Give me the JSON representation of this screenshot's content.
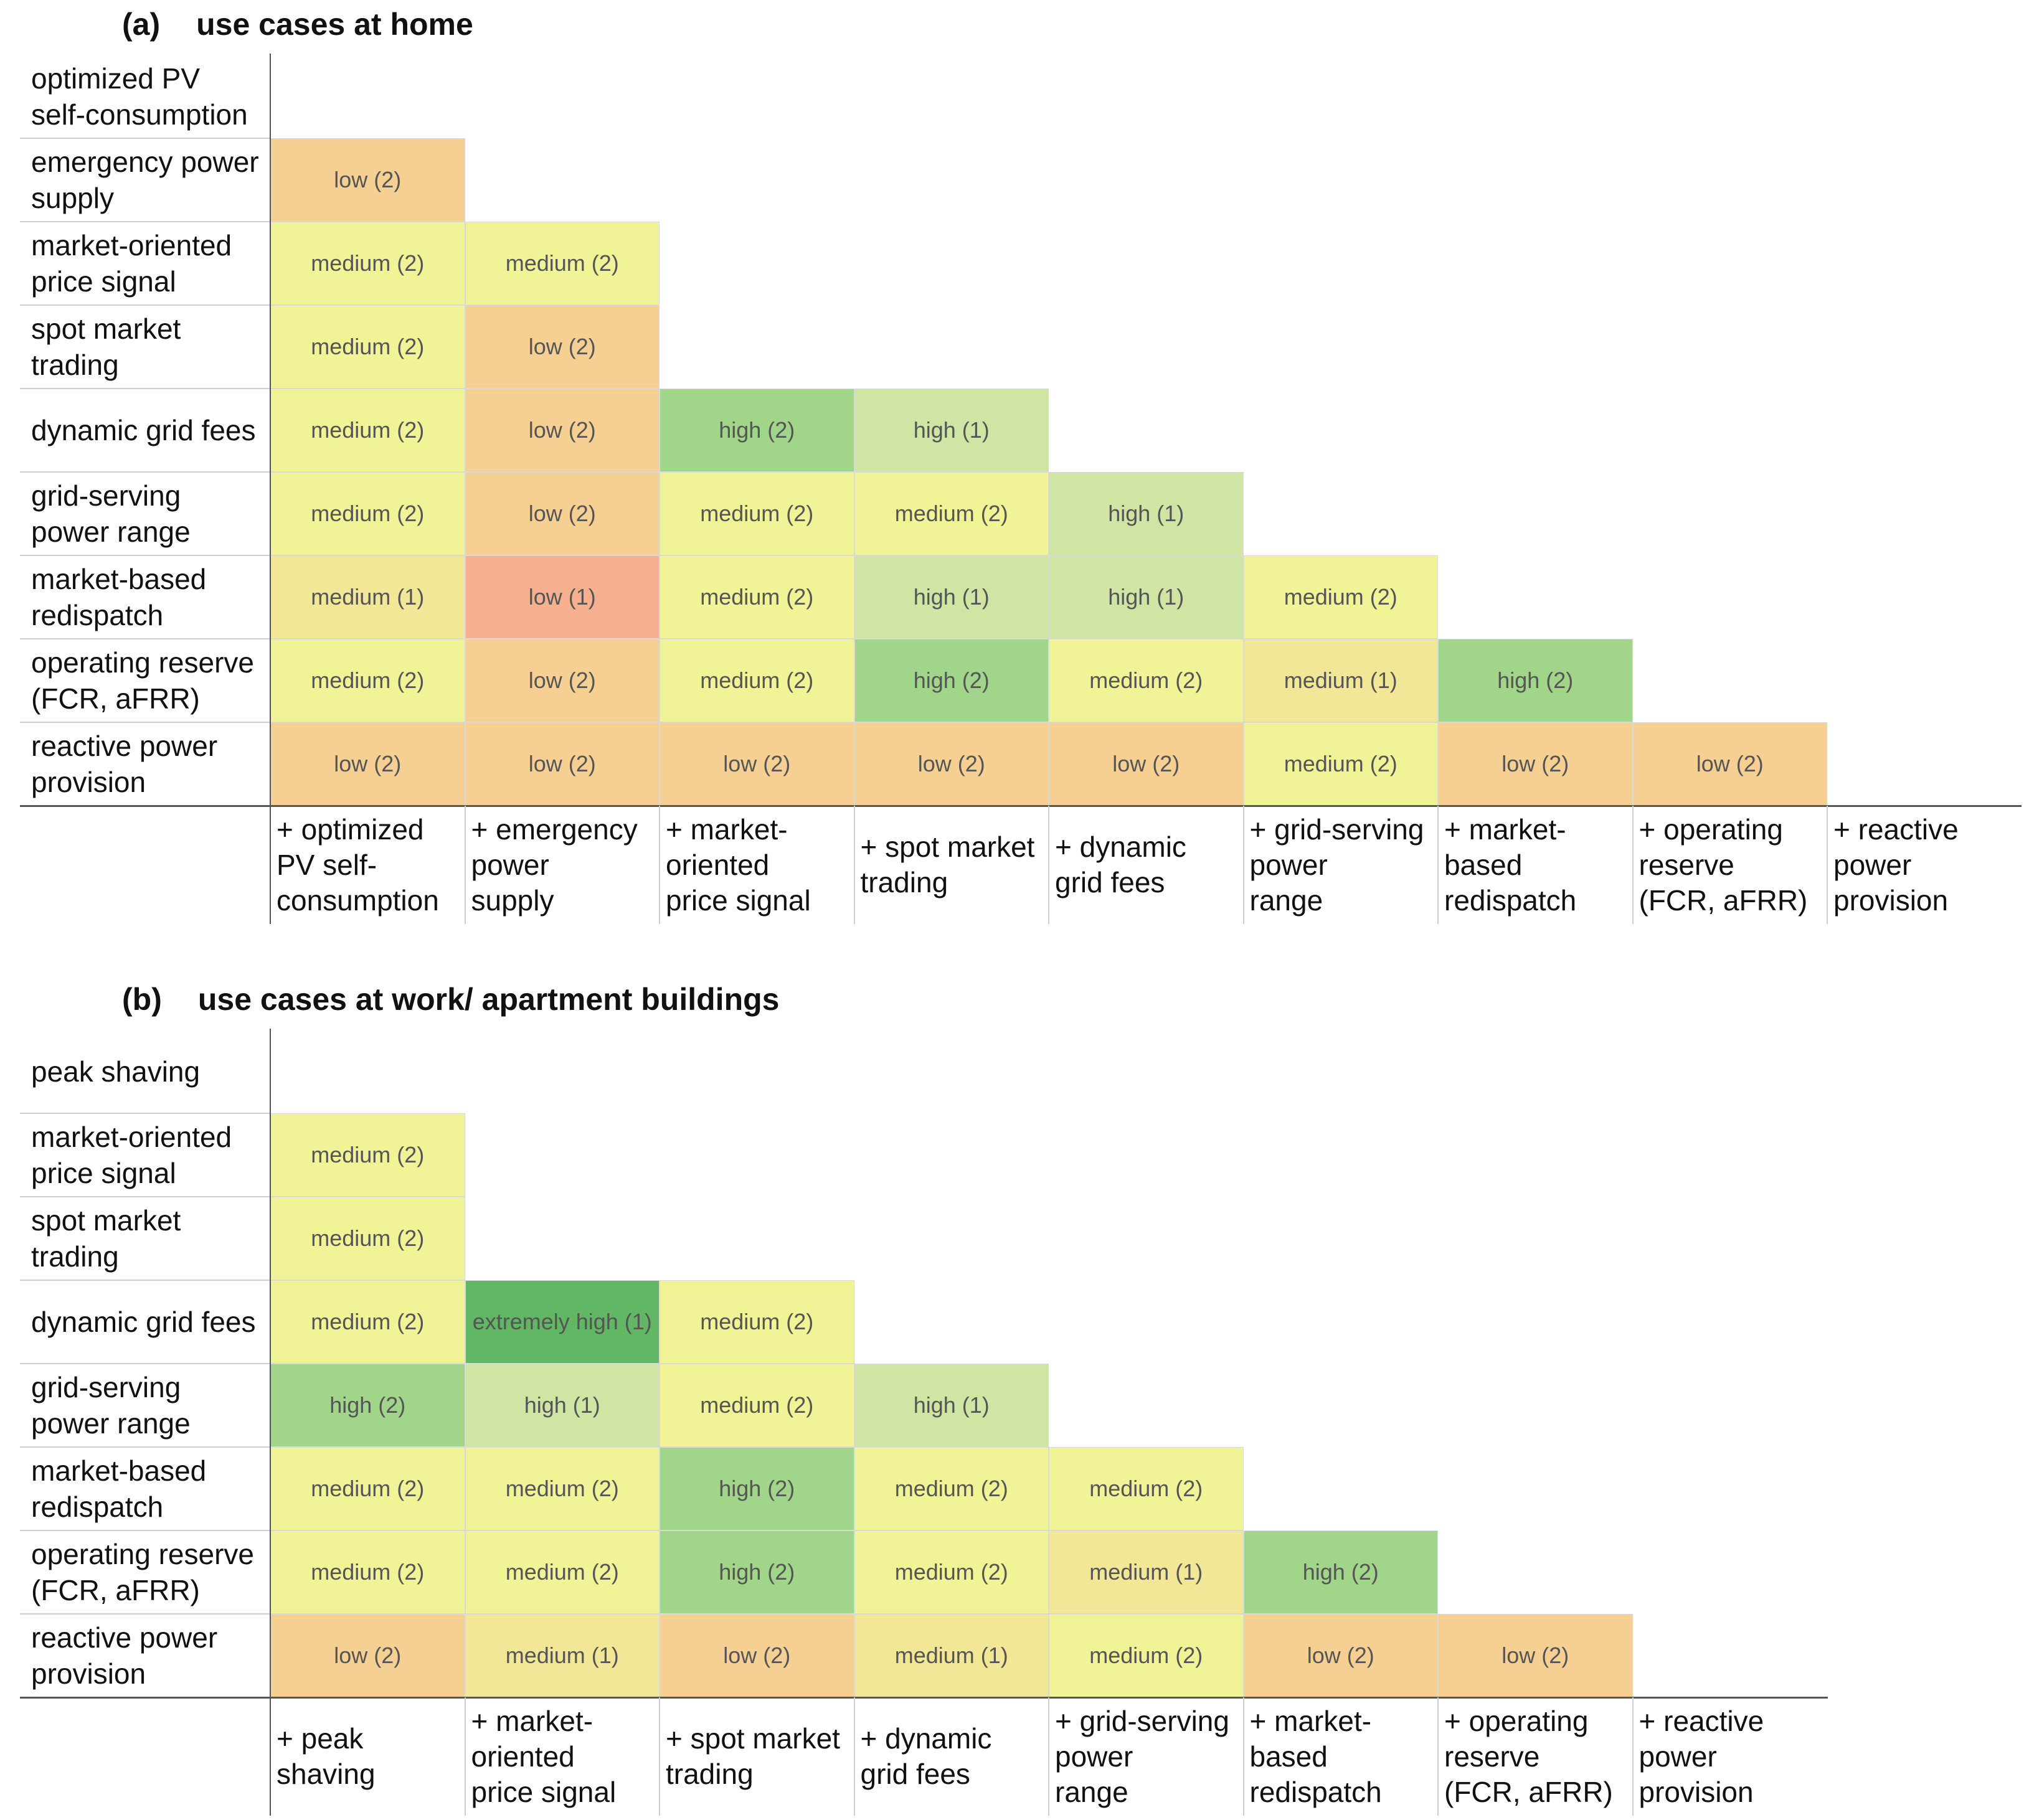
{
  "colors": {
    "low": "#f6cf93",
    "low_1": "#f5b08f",
    "medium": "#f0f496",
    "medium_1": "#f2e796",
    "high": "#a1d58a",
    "high_1": "#d0e5a4",
    "extremely_high": "#61b763"
  },
  "chart_data": [
    {
      "type": "heatmap",
      "panel_label": "(a)",
      "title": "use cases at home",
      "rows": [
        "optimized PV\nself-consumption",
        "emergency power\nsupply",
        "market-oriented\nprice signal",
        "spot market\ntrading",
        "dynamic grid fees",
        "grid-serving\npower range",
        "market-based\nredispatch",
        "operating reserve\n(FCR, aFRR)",
        "reactive power\nprovision"
      ],
      "columns": [
        "+ optimized\n  PV self-\n  consumption",
        "+ emergency\n  power\n  supply",
        "+ market-\n  oriented\n  price signal",
        "+ spot market\n  trading",
        "+ dynamic\n  grid fees",
        "+ grid-serving\n  power\nrange",
        "+ market-\n  based\n  redispatch",
        "+ operating\n  reserve\n  (FCR, aFRR)",
        "+ reactive\n  power\n  provision"
      ],
      "cells": [
        [],
        [
          "low (2)"
        ],
        [
          "medium (2)",
          "medium (2)"
        ],
        [
          "medium (2)",
          "low (2)"
        ],
        [
          "medium (2)",
          "low (2)",
          "high (2)",
          "high (1)"
        ],
        [
          "medium (2)",
          "low (2)",
          "medium (2)",
          "medium (2)",
          "high (1)"
        ],
        [
          "medium (1)",
          "low (1)",
          "medium (2)",
          "high (1)",
          "high (1)",
          "medium (2)"
        ],
        [
          "medium (2)",
          "low (2)",
          "medium (2)",
          "high (2)",
          "medium (2)",
          "medium (1)",
          "high (2)"
        ],
        [
          "low (2)",
          "low (2)",
          "low (2)",
          "low (2)",
          "low (2)",
          "medium (2)",
          "low (2)",
          "low (2)"
        ]
      ]
    },
    {
      "type": "heatmap",
      "panel_label": "(b)",
      "title": "use cases at work/ apartment buildings",
      "rows": [
        "peak shaving",
        "market-oriented\nprice signal",
        "spot market\ntrading",
        "dynamic grid fees",
        "grid-serving\npower range",
        "market-based\nredispatch",
        "operating reserve\n(FCR, aFRR)",
        "reactive power\nprovision"
      ],
      "columns": [
        "+ peak\nshaving",
        "+ market-\n  oriented\n  price signal",
        "+ spot market\n  trading",
        "+ dynamic\n  grid fees",
        "+ grid-serving\n  power\nrange",
        "+ market-\n  based\n  redispatch",
        "+ operating\n  reserve\n  (FCR, aFRR)",
        "+ reactive\n  power\n  provision"
      ],
      "cells": [
        [],
        [
          "medium (2)"
        ],
        [
          "medium (2)"
        ],
        [
          "medium (2)",
          "extremely high (1)",
          "medium (2)"
        ],
        [
          "high (2)",
          "high (1)",
          "medium (2)",
          "high (1)"
        ],
        [
          "medium (2)",
          "medium (2)",
          "high (2)",
          "medium (2)",
          "medium (2)"
        ],
        [
          "medium (2)",
          "medium (2)",
          "high (2)",
          "medium (2)",
          "medium (1)",
          "high (2)"
        ],
        [
          "low (2)",
          "medium (1)",
          "low (2)",
          "medium (1)",
          "medium (2)",
          "low (2)",
          "low (2)"
        ]
      ]
    }
  ]
}
